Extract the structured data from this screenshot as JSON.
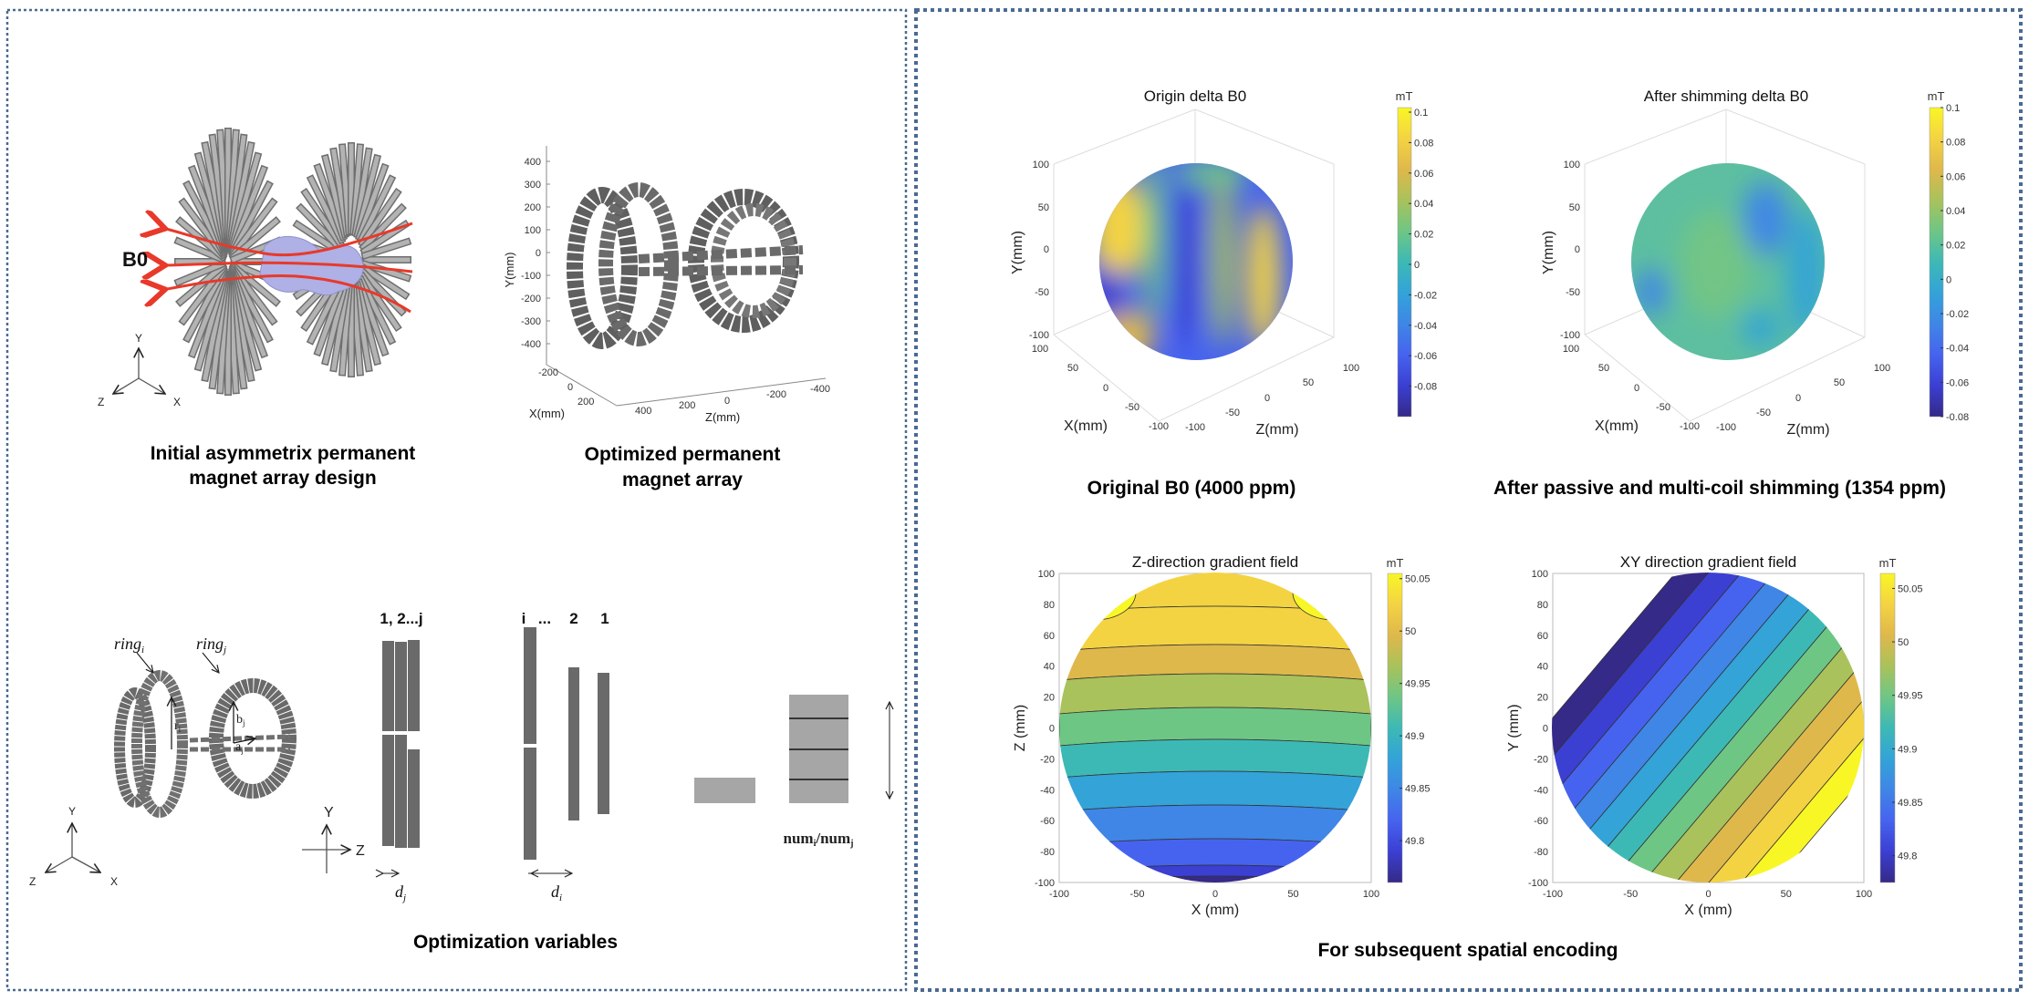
{
  "left_panel": {
    "initial_design": {
      "caption_line1": "Initial asymmetrix permanent",
      "caption_line2": "magnet array design",
      "field_label": "B0",
      "axes": {
        "y": "Y",
        "z": "Z",
        "x": "X"
      }
    },
    "optimized_array": {
      "caption_line1": "Optimized permanent",
      "caption_line2": "magnet array",
      "ylabel": "Y(mm)",
      "xlabel": "X(mm)",
      "zlabel": "Z(mm)",
      "y_ticks": [
        "400",
        "300",
        "200",
        "100",
        "0",
        "-100",
        "-200",
        "-300",
        "-400"
      ],
      "x_ticks": [
        "-200",
        "0",
        "200"
      ],
      "z_ticks": [
        "400",
        "200",
        "0",
        "-200",
        "-400"
      ]
    },
    "optimization_variables": {
      "caption": "Optimization variables",
      "ring_i_label": "ring",
      "ring_i_sub": "i",
      "ring_j_label": "ring",
      "ring_j_sub": "j",
      "r_label": "r",
      "r_sub": "i",
      "b_label": "b",
      "b_sub": "j",
      "a_label": "a",
      "a_sub": "j",
      "axes": {
        "y": "Y",
        "z": "Z",
        "x": "X"
      },
      "side_axes": {
        "y": "Y",
        "z": "Z"
      },
      "group_j_label": "1,  2...j",
      "group_i_labels": [
        "i",
        "...",
        "2",
        "1"
      ],
      "d_j": "d",
      "d_j_sub": "j",
      "d_i": "d",
      "d_i_sub": "i",
      "num_label": "num",
      "num_sub1": "i",
      "num_sep": "/num",
      "num_sub2": "j"
    }
  },
  "right_panel": {
    "spheres": [
      {
        "title": "Origin delta B0",
        "caption": "Original B0 (4000 ppm)",
        "unit": "mT",
        "colorbar_ticks": [
          "0.1",
          "0.08",
          "0.06",
          "0.04",
          "0.02",
          "0",
          "-0.02",
          "-0.04",
          "-0.06",
          "-0.08"
        ],
        "colorbar_range": [
          -0.1,
          0.103
        ]
      },
      {
        "title": "After shimming delta B0",
        "caption": "After passive and multi-coil shimming (1354 ppm)",
        "unit": "mT",
        "colorbar_ticks": [
          "0.1",
          "0.08",
          "0.06",
          "0.04",
          "0.02",
          "0",
          "-0.02",
          "-0.04",
          "-0.06",
          "-0.08"
        ],
        "colorbar_range": [
          -0.08,
          0.1
        ]
      }
    ],
    "sphere_axes": {
      "ylabel": "Y(mm)",
      "xlabel": "X(mm)",
      "zlabel": "Z(mm)",
      "y_ticks": [
        "100",
        "50",
        "0",
        "-50",
        "-100"
      ],
      "x_ticks": [
        "100",
        "50",
        "0",
        "-50",
        "-100"
      ],
      "z_ticks": [
        "-100",
        "-50",
        "0",
        "50",
        "100"
      ]
    },
    "gradients": [
      {
        "title": "Z-direction gradient field",
        "ylabel": "Z (mm)",
        "xlabel": "X (mm)",
        "unit": "mT",
        "colorbar_ticks": [
          "50.05",
          "50",
          "49.95",
          "49.9",
          "49.85",
          "49.8"
        ],
        "colorbar_range": [
          49.76,
          50.055
        ]
      },
      {
        "title": "XY direction gradient field",
        "ylabel": "Y (mm)",
        "xlabel": "X (mm)",
        "unit": "mT",
        "colorbar_ticks": [
          "50.05",
          "50",
          "49.95",
          "49.9",
          "49.85",
          "49.8"
        ],
        "colorbar_range": [
          49.775,
          50.064
        ]
      }
    ],
    "gradient_axes": {
      "x_ticks": [
        "-100",
        "-50",
        "0",
        "50",
        "100"
      ],
      "y_ticks": [
        "100",
        "80",
        "60",
        "40",
        "20",
        "0",
        "-20",
        "-40",
        "-60",
        "-80",
        "-100"
      ]
    },
    "caption_bottom": "For subsequent spatial encoding"
  },
  "colors": {
    "panel_border": "#4a6a92",
    "arrow_red": "#e8392a",
    "magnet_gray": "#a9a9a9",
    "magnet_dark": "#6a6a6a",
    "volume_blue": "#aeb0e6",
    "parula": [
      "#352a87",
      "#3b3fd2",
      "#4663ef",
      "#3f86e6",
      "#33a3d8",
      "#3db9b5",
      "#6ec685",
      "#a9c25b",
      "#dfb84b",
      "#f4d343",
      "#f9f626"
    ]
  }
}
